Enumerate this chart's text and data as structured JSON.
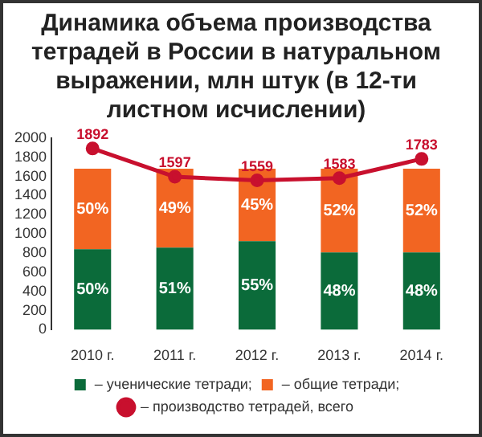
{
  "chart_data": {
    "type": "bar",
    "title": "Динамика объема производства тетрадей в России в натуральном выражении, млн штук (в 12-ти листном исчислении)",
    "categories": [
      "2010 г.",
      "2011 г.",
      "2012 г.",
      "2013 г.",
      "2014 г."
    ],
    "stacked": true,
    "series": [
      {
        "name": "– ученические тетради;",
        "color": "#0b6b3a",
        "axis": "y2",
        "values": [
          50,
          51,
          55,
          48,
          48
        ],
        "value_labels": [
          "50%",
          "51%",
          "55%",
          "48%",
          "48%"
        ]
      },
      {
        "name": "– общие тетради;",
        "color": "#f26522",
        "axis": "y2",
        "values": [
          50,
          49,
          45,
          52,
          52
        ],
        "value_labels": [
          "50%",
          "49%",
          "45%",
          "52%",
          "52%"
        ]
      },
      {
        "type": "line",
        "name": "– производство тетрадей, всего",
        "color": "#c8102e",
        "values": [
          1892,
          1597,
          1559,
          1583,
          1783
        ],
        "value_labels": [
          "1892",
          "1597",
          "1559",
          "1583",
          "1783"
        ],
        "marker": "circle"
      }
    ],
    "ylim": [
      0,
      2000
    ],
    "yticks": [
      0,
      200,
      400,
      600,
      800,
      1000,
      1200,
      1400,
      1600,
      1800,
      2000
    ],
    "y2lim": [
      0,
      119
    ],
    "grid": false,
    "legend": "bottom"
  }
}
